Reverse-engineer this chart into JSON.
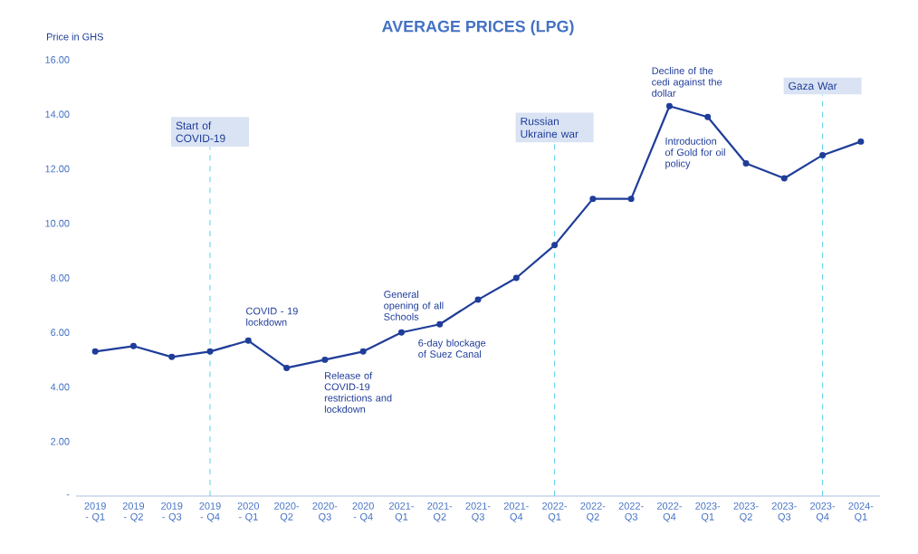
{
  "chart_data": {
    "type": "line",
    "title": "AVERAGE PRICES (LPG)",
    "ylabel": "Price in GHS",
    "categories": [
      "2019 - Q1",
      "2019 - Q2",
      "2019 - Q3",
      "2019 - Q4",
      "2020 - Q1",
      "2020-Q2",
      "2020-Q3",
      "2020 - Q4",
      "2021-Q1",
      "2021-Q2",
      "2021-Q3",
      "2021-Q4",
      "2022-Q1",
      "2022-Q2",
      "2022-Q3",
      "2022-Q4",
      "2023-Q1",
      "2023-Q2",
      "2023-Q3",
      "2023-Q4",
      "2024-Q1"
    ],
    "series": [
      {
        "color": "#1f3d99",
        "values": [
          5.3,
          5.5,
          5.1,
          5.3,
          5.7,
          4.7,
          5.0,
          5.3,
          6.0,
          6.3,
          7.2,
          8.0,
          9.2,
          10.9,
          10.9,
          14.3,
          13.9,
          12.2,
          11.65,
          12.5,
          13.0
        ]
      }
    ],
    "ylim": [
      0,
      16
    ],
    "yticks": [
      {
        "value": 0,
        "label": "-"
      },
      {
        "value": 2,
        "label": "2.00"
      },
      {
        "value": 4,
        "label": "4.00"
      },
      {
        "value": 6,
        "label": "6.00"
      },
      {
        "value": 8,
        "label": "8.00"
      },
      {
        "value": 10,
        "label": "10.00"
      },
      {
        "value": 12,
        "label": "12.00"
      },
      {
        "value": 14,
        "label": "14.00"
      },
      {
        "value": 16,
        "label": "16.00"
      }
    ],
    "ref_lines": [
      {
        "axis": "x",
        "value": "2019 - Q4",
        "label": "Start of COVID-19",
        "color": "#5bd0e8",
        "line_style": "dashed"
      },
      {
        "axis": "x",
        "value": "2022-Q1",
        "label": "Russian Ukraine war",
        "color": "#5bd0e8",
        "line_style": "dashed"
      },
      {
        "axis": "x",
        "value": "2023-Q4",
        "label": "Gaza War",
        "color": "#5bd0e8",
        "line_style": "dashed"
      }
    ],
    "annotations": [
      {
        "text": "COVID - 19 lockdown",
        "x": "2020 - Q1",
        "y": 5.7
      },
      {
        "text": "Release of COVID-19 restrictions and lockdown",
        "x": "2020-Q3",
        "y": 5.0
      },
      {
        "text": "General opening of all Schools",
        "x": "2021-Q1",
        "y": 6.0
      },
      {
        "text": "6-day blockage of Suez Canal",
        "x": "2021-Q2",
        "y": 6.3
      },
      {
        "text": "Decline of the cedi against the dollar",
        "x": "2022-Q4",
        "y": 14.3
      },
      {
        "text": "Introduction of Gold for oil policy",
        "x": "2023-Q1",
        "y": 13.9
      }
    ],
    "marker": "circle",
    "line_style": "solid",
    "grid": false
  }
}
